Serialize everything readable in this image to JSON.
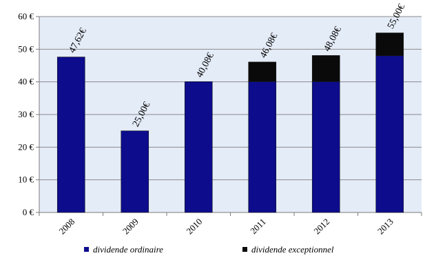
{
  "chart_data": {
    "type": "bar",
    "stacked": true,
    "categories": [
      "2008",
      "2009",
      "2010",
      "2011",
      "2012",
      "2013"
    ],
    "series": [
      {
        "name": "dividende ordinaire",
        "values": [
          47.62,
          25.0,
          40.08,
          40.08,
          40.08,
          48.0
        ],
        "color": "#0c0c8c"
      },
      {
        "name": "dividende exceptionnel",
        "values": [
          0,
          0,
          0,
          6.0,
          8.0,
          7.0
        ],
        "color": "#0a0a0a"
      }
    ],
    "totals": [
      47.62,
      25.0,
      40.08,
      46.08,
      48.08,
      55.0
    ],
    "value_labels": [
      "47,62€",
      "25,00€",
      "40,08€",
      "46,08€",
      "48,08€",
      "55,00€"
    ],
    "y_ticks": [
      0,
      10,
      20,
      30,
      40,
      50,
      60
    ],
    "y_tick_labels": [
      "0 €",
      "10 €",
      "20 €",
      "30 €",
      "40 €",
      "50 €",
      "60 €"
    ],
    "ylim": [
      0,
      60
    ],
    "grid": true,
    "legend_position": "bottom",
    "plot_background": "#e4ecf8",
    "title": "",
    "xlabel": "",
    "ylabel": ""
  }
}
